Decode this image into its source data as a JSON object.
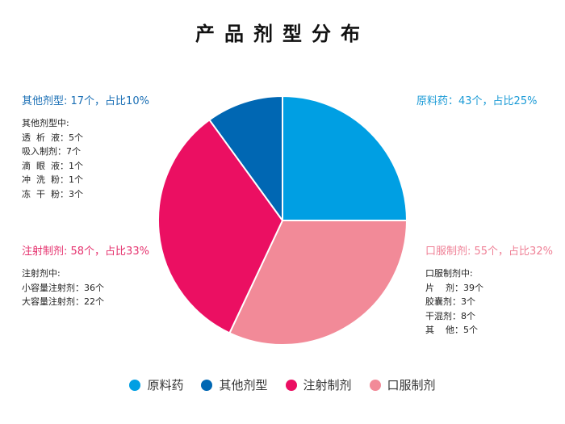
{
  "title": "产品剂型分布",
  "chart_data": {
    "type": "pie",
    "title": "产品剂型分布",
    "categories": [
      "原料药",
      "口服制剂",
      "注射制剂",
      "其他剂型"
    ],
    "values": [
      43,
      55,
      58,
      17
    ],
    "percentages": [
      25,
      32,
      33,
      10
    ],
    "colors": [
      "#009fe3",
      "#f28a98",
      "#eb0f62",
      "#0067b3"
    ],
    "legend_position": "bottom",
    "legend_order": [
      "原料药",
      "其他剂型",
      "注射制剂",
      "口服制剂"
    ]
  },
  "annotations": {
    "raw": {
      "head": "原料药：43个，占比25%",
      "color": "#1a9ad6"
    },
    "other": {
      "head": "其他剂型: 17个，占比10%",
      "color": "#1a6fb5",
      "sub_title": "其他剂型中:",
      "items": [
        "透  析  液：5个",
        "吸入制剂：7个",
        "滴  眼  液：1个",
        "冲  洗  粉：1个",
        "冻  干  粉：3个"
      ]
    },
    "injection": {
      "head": "注射制剂: 58个，占比33%",
      "color": "#e5326e",
      "sub_title": "注射剂中:",
      "items": [
        "小容量注射剂：36个",
        "大容量注射剂：22个"
      ]
    },
    "oral": {
      "head": "口服制剂: 55个，占比32%",
      "color": "#ef7f95",
      "sub_title": "口服制剂中:",
      "items": [
        "片    剂：39个",
        "胶囊剂：3个",
        "干混剂：8个",
        "其    他：5个"
      ]
    }
  },
  "legend": [
    {
      "label": "原料药",
      "color": "#009fe3"
    },
    {
      "label": "其他剂型",
      "color": "#0067b3"
    },
    {
      "label": "注射制剂",
      "color": "#eb0f62"
    },
    {
      "label": "口服制剂",
      "color": "#f28a98"
    }
  ]
}
